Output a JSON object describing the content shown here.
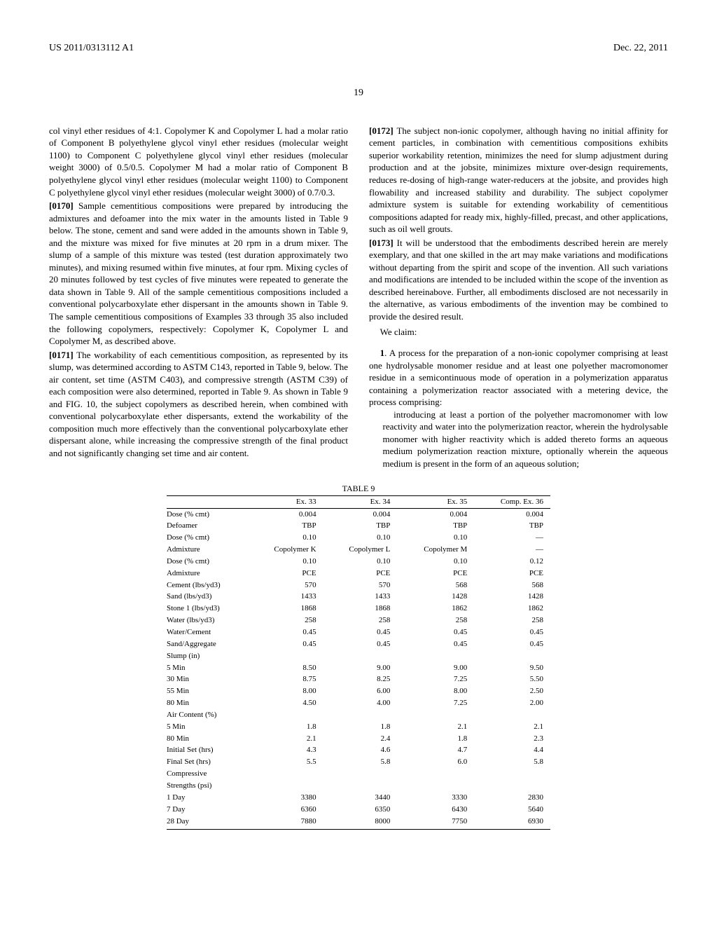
{
  "header": {
    "pub_no": "US 2011/0313112 A1",
    "date": "Dec. 22, 2011"
  },
  "page_number": "19",
  "col1": {
    "p1_pre": "col vinyl ether residues of 4:1. Copolymer K and Copolymer L had a molar ratio of Component B polyethylene glycol vinyl ether residues (molecular weight 1100) to Component C polyethylene glycol vinyl ether residues (molecular weight 3000) of 0.5/0.5. Copolymer M had a molar ratio of Component B polyethylene glycol vinyl ether residues (molecular weight 1100) to Component C polyethylene glycol vinyl ether residues (molecular weight 3000) of 0.7/0.3.",
    "p0170_tag": "[0170]",
    "p0170": "Sample cementitious compositions were prepared by introducing the admixtures and defoamer into the mix water in the amounts listed in Table 9 below. The stone, cement and sand were added in the amounts shown in Table 9, and the mixture was mixed for five minutes at 20 rpm in a drum mixer. The slump of a sample of this mixture was tested (test duration approximately two minutes), and mixing resumed within five minutes, at four rpm. Mixing cycles of 20 minutes followed by test cycles of five minutes were repeated to generate the data shown in Table 9. All of the sample cementitious compositions included a conventional polycarboxylate ether dispersant in the amounts shown in Table 9. The sample cementitious compositions of Examples 33 through 35 also included the following copolymers, respectively: Copolymer K, Copolymer L and Copolymer M, as described above.",
    "p0171_tag": "[0171]",
    "p0171": "The workability of each cementitious composition, as represented by its slump, was determined according to ASTM C143, reported in Table 9, below. The air content, set time (ASTM C403), and compressive strength (ASTM C39) of each composition were also determined, reported in Table 9. As shown in Table 9 and FIG. 10, the subject copolymers as described herein, when combined with conventional polycarboxylate ether dispersants, extend the workability of the composition much more effectively than the conventional polycarboxylate ether dispersant alone, while increasing the compressive strength of the final product and not significantly changing set time and air content."
  },
  "col2": {
    "p0172_tag": "[0172]",
    "p0172": "The subject non-ionic copolymer, although having no initial affinity for cement particles, in combination with cementitious compositions exhibits superior workability retention, minimizes the need for slump adjustment during production and at the jobsite, minimizes mixture over-design requirements, reduces re-dosing of high-range water-reducers at the jobsite, and provides high flowability and increased stability and durability. The subject copolymer admixture system is suitable for extending workability of cementitious compositions adapted for ready mix, highly-filled, precast, and other applications, such as oil well grouts.",
    "p0173_tag": "[0173]",
    "p0173": "It will be understood that the embodiments described herein are merely exemplary, and that one skilled in the art may make variations and modifications without departing from the spirit and scope of the invention. All such variations and modifications are intended to be included within the scope of the invention as described hereinabove. Further, all embodiments disclosed are not necessarily in the alternative, as various embodiments of the invention may be combined to provide the desired result.",
    "we_claim": "We claim:",
    "claim1_num": "1",
    "claim1": ". A process for the preparation of a non-ionic copolymer comprising at least one hydrolysable monomer residue and at least one polyether macromonomer residue in a semicontinuous mode of operation in a polymerization apparatus containing a polymerization reactor associated with a metering device, the process comprising:",
    "claim1_sub": "introducing at least a portion of the polyether macromonomer with low reactivity and water into the polymerization reactor, wherein the hydrolysable monomer with higher reactivity which is added thereto forms an aqueous medium polymerization reaction mixture, optionally wherein the aqueous medium is present in the form of an aqueous solution;"
  },
  "table9": {
    "caption": "TABLE 9",
    "columns": [
      "",
      "Ex. 33",
      "Ex. 34",
      "Ex. 35",
      "Comp. Ex. 36"
    ],
    "rows_main": [
      [
        "Dose (% cmt)",
        "0.004",
        "0.004",
        "0.004",
        "0.004"
      ],
      [
        "Defoamer",
        "TBP",
        "TBP",
        "TBP",
        "TBP"
      ],
      [
        "Dose (% cmt)",
        "0.10",
        "0.10",
        "0.10",
        "—"
      ],
      [
        "Admixture",
        "Copolymer K",
        "Copolymer L",
        "Copolymer M",
        "—"
      ],
      [
        "Dose (% cmt)",
        "0.10",
        "0.10",
        "0.10",
        "0.12"
      ],
      [
        "Admixture",
        "PCE",
        "PCE",
        "PCE",
        "PCE"
      ],
      [
        "Cement (lbs/yd3)",
        "570",
        "570",
        "568",
        "568"
      ],
      [
        "Sand (lbs/yd3)",
        "1433",
        "1433",
        "1428",
        "1428"
      ],
      [
        "Stone 1 (lbs/yd3)",
        "1868",
        "1868",
        "1862",
        "1862"
      ],
      [
        "Water (lbs/yd3)",
        "258",
        "258",
        "258",
        "258"
      ],
      [
        "Water/Cement",
        "0.45",
        "0.45",
        "0.45",
        "0.45"
      ],
      [
        "Sand/Aggregate",
        "0.45",
        "0.45",
        "0.45",
        "0.45"
      ],
      [
        "Slump (in)",
        "",
        "",
        "",
        ""
      ]
    ],
    "rows_slump": [
      [
        "5 Min",
        "8.50",
        "9.00",
        "9.00",
        "9.50"
      ],
      [
        "30 Min",
        "8.75",
        "8.25",
        "7.25",
        "5.50"
      ],
      [
        "55 Min",
        "8.00",
        "6.00",
        "8.00",
        "2.50"
      ],
      [
        "80 Min",
        "4.50",
        "4.00",
        "7.25",
        "2.00"
      ],
      [
        "Air Content (%)",
        "",
        "",
        "",
        ""
      ]
    ],
    "rows_air": [
      [
        "5 Min",
        "1.8",
        "1.8",
        "2.1",
        "2.1"
      ],
      [
        "80 Min",
        "2.1",
        "2.4",
        "1.8",
        "2.3"
      ],
      [
        "Initial Set (hrs)",
        "4.3",
        "4.6",
        "4.7",
        "4.4"
      ],
      [
        "Final Set (hrs)",
        "5.5",
        "5.8",
        "6.0",
        "5.8"
      ],
      [
        "Compressive",
        "",
        "",
        "",
        ""
      ],
      [
        "Strengths (psi)",
        "",
        "",
        "",
        ""
      ]
    ],
    "rows_strength": [
      [
        "1 Day",
        "3380",
        "3440",
        "3330",
        "2830"
      ],
      [
        "7 Day",
        "6360",
        "6350",
        "6430",
        "5640"
      ],
      [
        "28 Day",
        "7880",
        "8000",
        "7750",
        "6930"
      ]
    ],
    "font_size": 11,
    "border_color": "#000000"
  }
}
